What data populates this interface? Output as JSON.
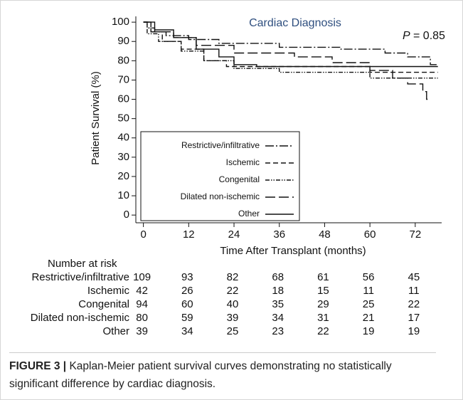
{
  "chart_data": {
    "type": "step",
    "title": "Cardiac Diagnosis",
    "p_label": "P",
    "p_value": "= 0.85",
    "y_label": "Patient Survival (%)",
    "x_label": "Time After Transplant (months)",
    "xlim": [
      -2,
      79
    ],
    "xticks": [
      0,
      12,
      24,
      36,
      48,
      60,
      72
    ],
    "ylim": [
      -4,
      103
    ],
    "yticks": [
      0,
      10,
      20,
      30,
      40,
      50,
      60,
      70,
      80,
      90,
      100
    ],
    "legend": "lower left",
    "series": [
      {
        "name": "Restrictive/infiltrative",
        "color": "#111111",
        "dash": "12 3 2 3",
        "x": [
          0,
          1,
          1,
          3,
          3,
          6,
          6,
          12,
          12,
          20,
          20,
          36,
          36,
          52,
          52,
          64,
          64,
          70,
          70,
          76,
          76,
          78
        ],
        "values": [
          100,
          100,
          97,
          97,
          95,
          95,
          93,
          93,
          91,
          91,
          89,
          89,
          87,
          87,
          86,
          86,
          84,
          84,
          82,
          82,
          78,
          78
        ]
      },
      {
        "name": "Ischemic",
        "color": "#111111",
        "dash": "7 4",
        "x": [
          0,
          2,
          2,
          5,
          5,
          10,
          10,
          16,
          16,
          22,
          22,
          60,
          60,
          78
        ],
        "values": [
          100,
          100,
          95,
          95,
          90,
          90,
          86,
          86,
          80,
          80,
          77,
          77,
          74,
          74
        ]
      },
      {
        "name": "Congenital",
        "color": "#111111",
        "dash": "6 2 1.5 2 1.5 2",
        "x": [
          0,
          1,
          1,
          4,
          4,
          10,
          10,
          16,
          16,
          24,
          24,
          36,
          36,
          60,
          60,
          78
        ],
        "values": [
          100,
          100,
          94,
          94,
          90,
          90,
          85,
          85,
          80,
          80,
          76,
          76,
          74,
          74,
          71,
          71
        ]
      },
      {
        "name": "Dilated non-ischemic",
        "color": "#111111",
        "dash": "14 5",
        "x": [
          0,
          2,
          2,
          8,
          8,
          14,
          14,
          24,
          24,
          40,
          40,
          50,
          50,
          60,
          60,
          66,
          66,
          70,
          70,
          74,
          74,
          75,
          75,
          76
        ],
        "values": [
          100,
          100,
          95,
          95,
          92,
          92,
          88,
          88,
          84,
          84,
          82,
          82,
          79,
          79,
          75,
          75,
          71,
          71,
          68,
          68,
          64,
          64,
          60,
          60
        ]
      },
      {
        "name": "Other",
        "color": "#111111",
        "dash": "",
        "x": [
          0,
          3,
          3,
          8,
          8,
          14,
          14,
          20,
          20,
          24,
          24,
          30,
          30,
          78
        ],
        "values": [
          100,
          100,
          96,
          96,
          92,
          92,
          86,
          86,
          82,
          82,
          78,
          78,
          77,
          77
        ]
      }
    ],
    "risk_table": {
      "title": "Number at risk",
      "rows": [
        {
          "name": "Restrictive/infiltrative",
          "values": [
            "109",
            "93",
            "82",
            "68",
            "61",
            "56",
            "45"
          ]
        },
        {
          "name": "Ischemic",
          "values": [
            "42",
            "26",
            "22",
            "18",
            "15",
            "11",
            "11"
          ]
        },
        {
          "name": "Congenital",
          "values": [
            "94",
            "60",
            "40",
            "35",
            "29",
            "25",
            "22"
          ]
        },
        {
          "name": "Dilated non-ischemic",
          "values": [
            "80",
            "59",
            "39",
            "34",
            "31",
            "21",
            "17"
          ]
        },
        {
          "name": "Other",
          "values": [
            "39",
            "34",
            "25",
            "23",
            "22",
            "19",
            "19"
          ]
        }
      ]
    }
  },
  "caption": {
    "label": "FIGURE 3 |",
    "text": "Kaplan-Meier patient survival curves demonstrating no statistically significant difference by cardiac diagnosis."
  }
}
